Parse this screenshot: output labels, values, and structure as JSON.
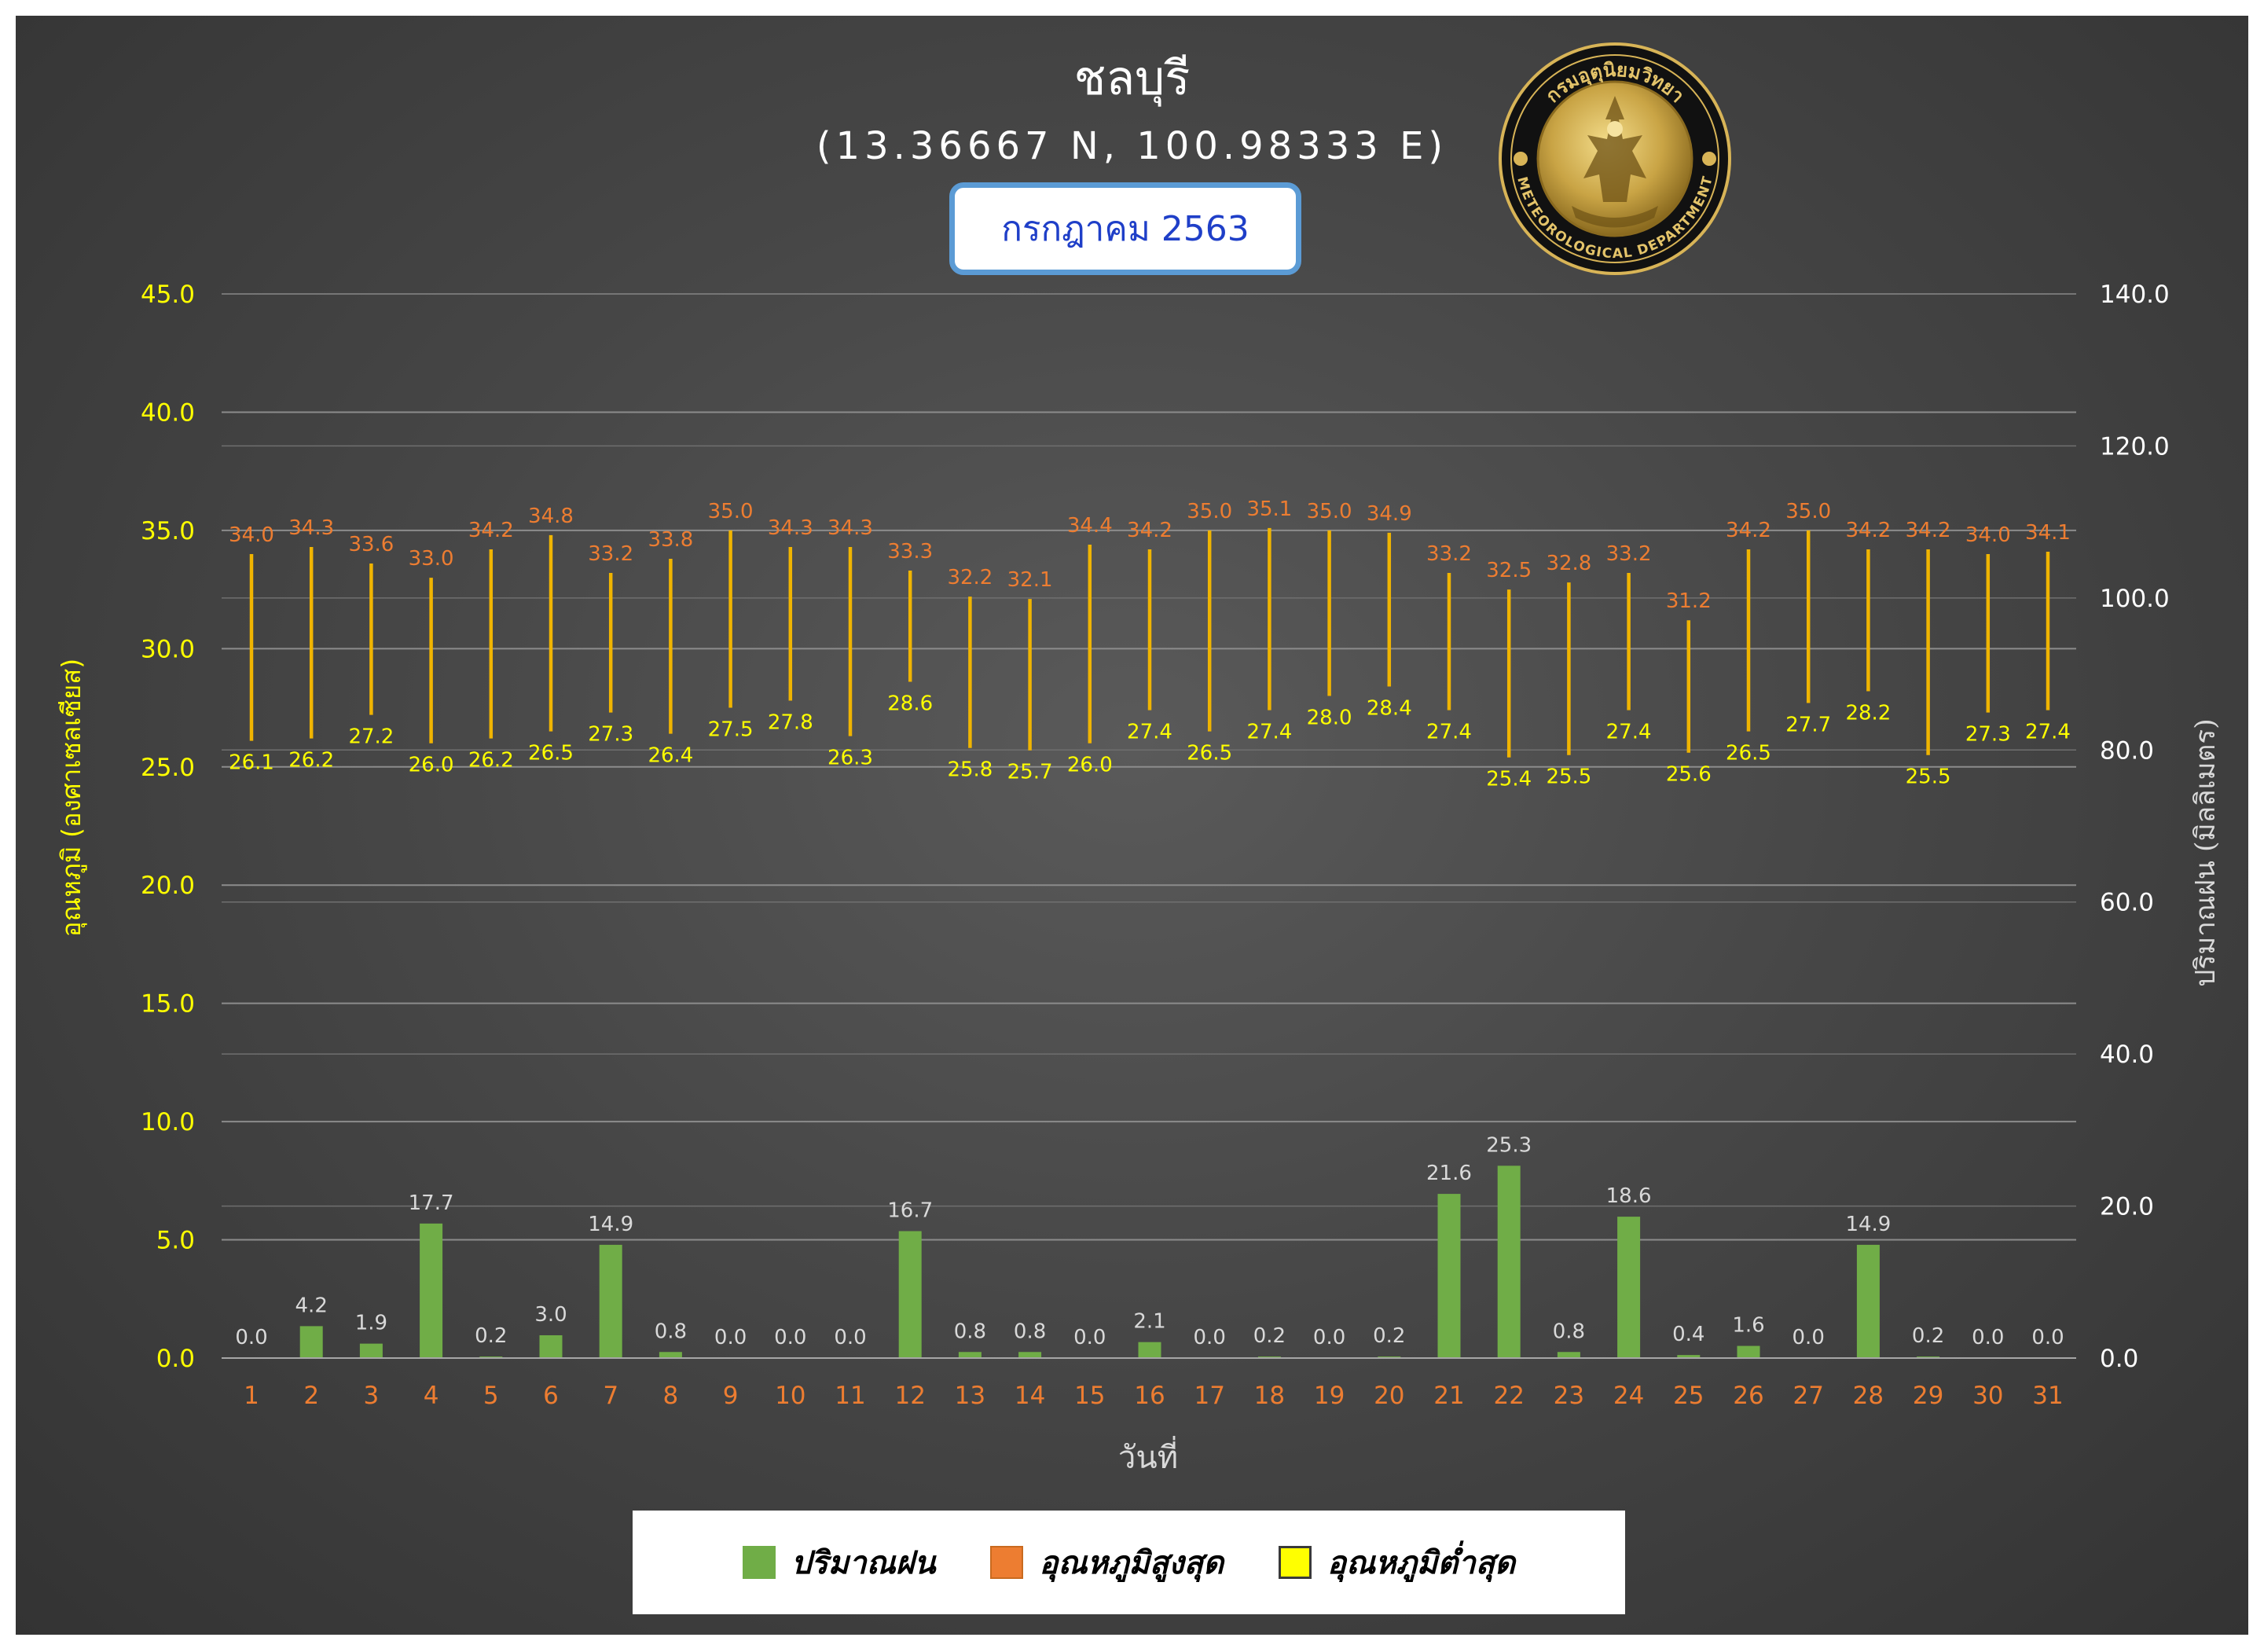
{
  "header": {
    "station": "ชลบุรี",
    "coordinates": "(13.36667 N, 100.98333 E)",
    "period": "กรกฎาคม 2563",
    "seal_text_top": "กรมอุตุนิยมวิทยา",
    "seal_text_bottom": "METEOROLOGICAL DEPARTMENT"
  },
  "colors": {
    "rain": "#70ad47",
    "max_temp": "#ed7d31",
    "min_temp": "#ffff00",
    "range_line": "#f0b400",
    "axis_left": "#ffff00",
    "axis_right": "#ffffff",
    "day_labels": "#ed7d31",
    "value_labels": "#d9d9d9"
  },
  "chart_data": {
    "type": "bar",
    "xlabel": "วันที่",
    "ylabel_left": "อุณหภูมิ (องศาเซลเซียส)",
    "ylabel_right": "ปริมาณฝน (มิลลิเมตร)",
    "ylim_left": [
      0,
      45
    ],
    "ylim_right": [
      0,
      140
    ],
    "yticks_left": [
      "0.0",
      "5.0",
      "10.0",
      "15.0",
      "20.0",
      "25.0",
      "30.0",
      "35.0",
      "40.0",
      "45.0"
    ],
    "yticks_right": [
      "0.0",
      "20.0",
      "40.0",
      "60.0",
      "80.0",
      "100.0",
      "120.0",
      "140.0"
    ],
    "grid": true,
    "legend_position": "bottom",
    "categories": [
      "1",
      "2",
      "3",
      "4",
      "5",
      "6",
      "7",
      "8",
      "9",
      "10",
      "11",
      "12",
      "13",
      "14",
      "15",
      "16",
      "17",
      "18",
      "19",
      "20",
      "21",
      "22",
      "23",
      "24",
      "25",
      "26",
      "27",
      "28",
      "29",
      "30",
      "31"
    ],
    "series": [
      {
        "name": "ปริมาณฝน",
        "type": "bar",
        "axis": "right",
        "values": [
          0.0,
          4.2,
          1.9,
          17.7,
          0.2,
          3.0,
          14.9,
          0.8,
          0.0,
          0.0,
          0.0,
          16.7,
          0.8,
          0.8,
          0.0,
          2.1,
          0.0,
          0.2,
          0.0,
          0.2,
          21.6,
          25.3,
          0.8,
          18.6,
          0.4,
          1.6,
          0.0,
          14.9,
          0.2,
          0.0,
          0.0
        ]
      },
      {
        "name": "อุณหภูมิสูงสุด",
        "type": "hi-lo",
        "axis": "left",
        "values": [
          34.0,
          34.3,
          33.6,
          33.0,
          34.2,
          34.8,
          33.2,
          33.8,
          35.0,
          34.3,
          34.3,
          33.3,
          32.2,
          32.1,
          34.4,
          34.2,
          35.0,
          35.1,
          35.0,
          34.9,
          33.2,
          32.5,
          32.8,
          33.2,
          31.2,
          34.2,
          35.0,
          34.2,
          34.2,
          34.0,
          34.1
        ]
      },
      {
        "name": "อุณหภูมิต่ำสุด",
        "type": "hi-lo",
        "axis": "left",
        "values": [
          26.1,
          26.2,
          27.2,
          26.0,
          26.2,
          26.5,
          27.3,
          26.4,
          27.5,
          27.8,
          26.3,
          28.6,
          25.8,
          25.7,
          26.0,
          27.4,
          26.5,
          27.4,
          28.0,
          28.4,
          27.4,
          25.4,
          25.5,
          27.4,
          25.6,
          26.5,
          27.7,
          28.2,
          25.5,
          27.3,
          27.4
        ]
      }
    ]
  }
}
